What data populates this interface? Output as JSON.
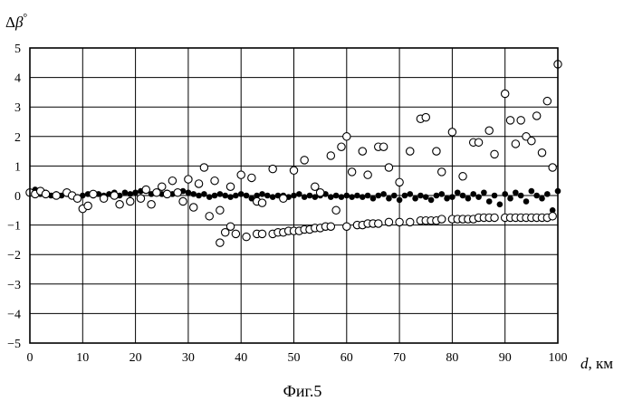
{
  "figure": {
    "caption": "Фиг.5"
  },
  "chart_data": {
    "type": "scatter",
    "title": "",
    "ylabel_parts": [
      "Δ",
      "β",
      "°"
    ],
    "xlabel_parts": [
      "d",
      ", км"
    ],
    "xlim": [
      0,
      100
    ],
    "ylim": [
      -5,
      5
    ],
    "xticks": [
      0,
      10,
      20,
      30,
      40,
      50,
      60,
      70,
      80,
      90,
      100
    ],
    "yticks": [
      5,
      4,
      3,
      2,
      1,
      0,
      -1,
      -2,
      -3,
      -4,
      -5
    ],
    "grid": true,
    "legend": "none",
    "series": [
      {
        "marker": "filled-circle",
        "x": [
          0,
          1,
          2,
          3,
          4,
          5,
          6,
          7,
          8,
          9,
          10,
          11,
          12,
          13,
          14,
          15,
          16,
          17,
          18,
          19,
          20,
          21,
          22,
          23,
          24,
          25,
          26,
          27,
          28,
          29,
          30,
          31,
          32,
          33,
          34,
          35,
          36,
          37,
          38,
          39,
          40,
          41,
          42,
          43,
          44,
          45,
          46,
          47,
          48,
          49,
          50,
          51,
          52,
          53,
          54,
          55,
          56,
          57,
          58,
          59,
          60,
          61,
          62,
          63,
          64,
          65,
          66,
          67,
          68,
          69,
          70,
          71,
          72,
          73,
          74,
          75,
          76,
          77,
          78,
          79,
          80,
          81,
          82,
          83,
          84,
          85,
          86,
          87,
          88,
          89,
          90,
          91,
          92,
          93,
          94,
          95,
          96,
          97,
          98,
          99,
          100
        ],
        "y": [
          0.1,
          0.2,
          0.05,
          0.1,
          0,
          0.05,
          0,
          0.05,
          0,
          -0.05,
          0,
          0.05,
          0,
          0.05,
          0,
          0.05,
          0.1,
          0,
          0.1,
          0.05,
          0.1,
          0.15,
          0.2,
          0.05,
          0.1,
          0.05,
          0.1,
          0.05,
          0.1,
          0.15,
          0.1,
          0.05,
          0,
          0.05,
          -0.05,
          0,
          0.05,
          0,
          -0.05,
          0,
          0.05,
          0,
          -0.1,
          0,
          0.05,
          0,
          -0.05,
          0,
          0,
          -0.05,
          0,
          0.05,
          -0.05,
          0,
          -0.05,
          0,
          0.05,
          -0.05,
          0,
          -0.05,
          0,
          -0.05,
          0,
          -0.05,
          0,
          -0.1,
          0,
          0.05,
          -0.1,
          0,
          -0.15,
          0,
          0.05,
          -0.1,
          0,
          -0.05,
          -0.15,
          0,
          0.05,
          -0.1,
          -0.05,
          0.1,
          0,
          -0.1,
          0.05,
          -0.05,
          0.1,
          -0.2,
          0,
          -0.3,
          0.05,
          -0.1,
          0.1,
          0,
          -0.2,
          0.15,
          0,
          -0.1,
          0.05,
          -0.5,
          0.15
        ]
      },
      {
        "marker": "open-circle",
        "x": [
          0,
          1,
          2,
          3,
          5,
          7,
          8,
          9,
          10,
          11,
          12,
          14,
          16,
          17,
          19,
          21,
          22,
          23,
          24,
          25,
          26,
          27,
          28,
          29,
          30,
          31,
          32,
          33,
          34,
          35,
          36,
          38,
          40,
          42,
          43,
          44,
          46,
          48,
          50,
          52,
          54,
          55,
          57,
          58,
          59,
          60,
          61,
          63,
          64,
          66,
          67,
          68,
          70,
          72,
          74,
          75,
          77,
          78,
          80,
          82,
          84,
          85,
          87,
          88,
          90,
          91,
          92,
          93,
          94,
          95,
          96,
          97,
          98,
          99,
          100,
          36,
          37,
          38,
          39,
          41,
          43,
          44,
          46,
          47,
          48,
          49,
          50,
          51,
          52,
          53,
          54,
          55,
          56,
          57,
          60,
          62,
          63,
          64,
          65,
          66,
          68,
          70,
          72,
          74,
          75,
          76,
          77,
          78,
          80,
          81,
          82,
          83,
          84,
          85,
          86,
          87,
          88,
          90,
          91,
          92,
          93,
          94,
          95,
          96,
          97,
          98,
          99
        ],
        "y": [
          0.1,
          0.05,
          0.15,
          0.05,
          0,
          0.1,
          0,
          -0.1,
          -0.45,
          -0.35,
          0.05,
          -0.1,
          0,
          -0.3,
          -0.2,
          -0.1,
          0.2,
          -0.3,
          0.1,
          0.3,
          0.05,
          0.5,
          0.1,
          -0.2,
          0.55,
          -0.4,
          0.4,
          0.95,
          -0.7,
          0.5,
          -0.5,
          0.3,
          0.7,
          0.6,
          -0.2,
          -0.25,
          0.9,
          -0.1,
          0.85,
          1.2,
          0.3,
          0.1,
          1.35,
          -0.5,
          1.65,
          2.0,
          0.8,
          1.5,
          0.7,
          1.65,
          1.65,
          0.95,
          0.45,
          1.5,
          2.6,
          2.65,
          1.5,
          0.8,
          2.15,
          0.65,
          1.8,
          1.8,
          2.2,
          1.4,
          3.45,
          2.55,
          1.75,
          2.55,
          2.0,
          1.85,
          2.7,
          1.45,
          3.2,
          0.95,
          4.45,
          -1.6,
          -1.25,
          -1.05,
          -1.3,
          -1.4,
          -1.3,
          -1.3,
          -1.3,
          -1.25,
          -1.25,
          -1.2,
          -1.2,
          -1.2,
          -1.15,
          -1.15,
          -1.1,
          -1.1,
          -1.05,
          -1.05,
          -1.05,
          -1.0,
          -1.0,
          -0.95,
          -0.95,
          -0.95,
          -0.9,
          -0.9,
          -0.9,
          -0.85,
          -0.85,
          -0.85,
          -0.85,
          -0.8,
          -0.8,
          -0.8,
          -0.8,
          -0.8,
          -0.8,
          -0.75,
          -0.75,
          -0.75,
          -0.75,
          -0.75,
          -0.75,
          -0.75,
          -0.75,
          -0.75,
          -0.75,
          -0.75,
          -0.75,
          -0.75,
          -0.7
        ]
      }
    ]
  }
}
